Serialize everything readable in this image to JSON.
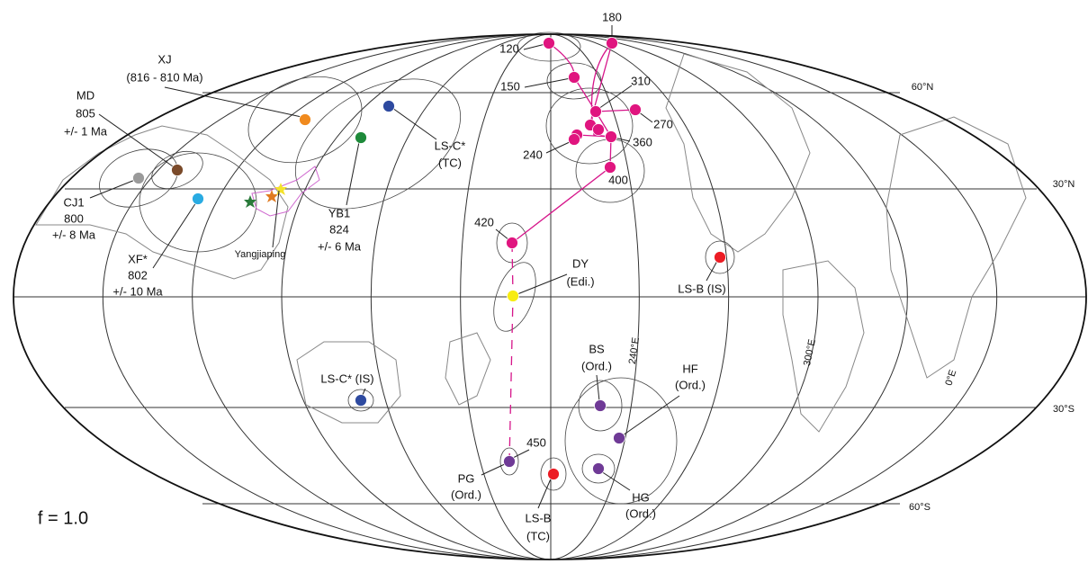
{
  "annotation": "f = 1.0",
  "latitude_labels": [
    "60°N",
    "30°N",
    "30°S",
    "60°S"
  ],
  "longitude_labels": [
    "240°E",
    "300°E",
    "0°E"
  ],
  "apwp_ages": [
    "120",
    "150",
    "180",
    "240",
    "270",
    "310",
    "360",
    "400",
    "420",
    "450"
  ],
  "site": "Yangjiaping",
  "poles": [
    {
      "lines": [
        "XJ",
        "(816 - 810 Ma)"
      ]
    },
    {
      "lines": [
        "MD",
        "805",
        "+/- 1 Ma"
      ]
    },
    {
      "lines": [
        "CJ1",
        "800",
        "+/- 8 Ma"
      ]
    },
    {
      "lines": [
        "XF*",
        "802",
        "+/- 10 Ma"
      ]
    },
    {
      "lines": [
        "YB1",
        "824",
        "+/- 6 Ma"
      ]
    },
    {
      "lines": [
        "LS-C*",
        "(TC)"
      ]
    },
    {
      "lines": [
        "LS-C* (IS)"
      ]
    },
    {
      "lines": [
        "DY",
        "(Edi.)"
      ]
    },
    {
      "lines": [
        "LS-B (IS)"
      ]
    },
    {
      "lines": [
        "BS",
        "(Ord.)"
      ]
    },
    {
      "lines": [
        "HF",
        "(Ord.)"
      ]
    },
    {
      "lines": [
        "HG",
        "(Ord.)"
      ]
    },
    {
      "lines": [
        "PG",
        "(Ord.)"
      ]
    },
    {
      "lines": [
        "LS-B",
        "(TC)"
      ]
    }
  ]
}
